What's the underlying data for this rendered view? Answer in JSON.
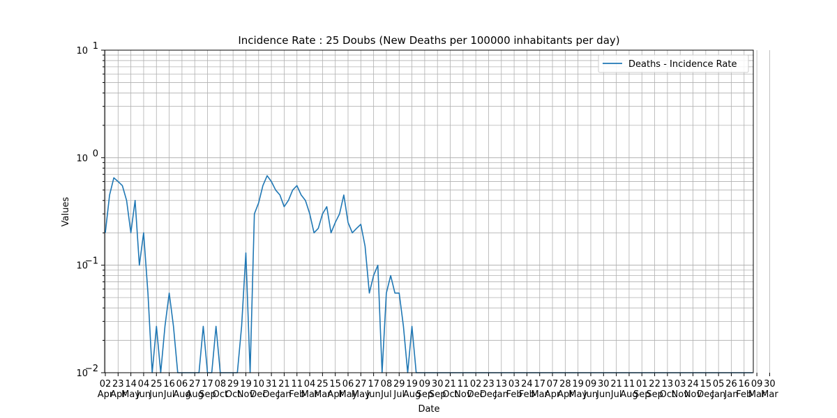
{
  "chart_data": {
    "type": "line",
    "title": "Incidence Rate : 25 Doubs (New Deaths per 100000 inhabitants per day)",
    "xlabel": "Date",
    "ylabel": "Values",
    "yscale": "log",
    "ylim": [
      0.01,
      10
    ],
    "y_ticks": [
      {
        "value": 0.01,
        "base": "10",
        "exp": "−2"
      },
      {
        "value": 0.1,
        "base": "10",
        "exp": "−1"
      },
      {
        "value": 1,
        "base": "10",
        "exp": "0"
      },
      {
        "value": 10,
        "base": "10",
        "exp": "1"
      }
    ],
    "grid": true,
    "legend_position": "top-right",
    "color": "#1f77b4",
    "x_ticks": [
      {
        "day": "02",
        "month": "Apr"
      },
      {
        "day": "23",
        "month": "Apr"
      },
      {
        "day": "14",
        "month": "May"
      },
      {
        "day": "04",
        "month": "Jun"
      },
      {
        "day": "25",
        "month": "Jun"
      },
      {
        "day": "16",
        "month": "Jul"
      },
      {
        "day": "06",
        "month": "Aug"
      },
      {
        "day": "27",
        "month": "Aug"
      },
      {
        "day": "17",
        "month": "Sep"
      },
      {
        "day": "08",
        "month": "Oct"
      },
      {
        "day": "29",
        "month": "Oct"
      },
      {
        "day": "19",
        "month": "Nov"
      },
      {
        "day": "10",
        "month": "Dec"
      },
      {
        "day": "31",
        "month": "Dec"
      },
      {
        "day": "21",
        "month": "Jan"
      },
      {
        "day": "11",
        "month": "Feb"
      },
      {
        "day": "04",
        "month": "Mar"
      },
      {
        "day": "25",
        "month": "Mar"
      },
      {
        "day": "15",
        "month": "Apr"
      },
      {
        "day": "06",
        "month": "May"
      },
      {
        "day": "27",
        "month": "May"
      },
      {
        "day": "17",
        "month": "Jun"
      },
      {
        "day": "08",
        "month": "Jul"
      },
      {
        "day": "29",
        "month": "Jul"
      },
      {
        "day": "19",
        "month": "Aug"
      },
      {
        "day": "09",
        "month": "Sep"
      },
      {
        "day": "30",
        "month": "Sep"
      },
      {
        "day": "21",
        "month": "Oct"
      },
      {
        "day": "11",
        "month": "Nov"
      },
      {
        "day": "02",
        "month": "Dec"
      },
      {
        "day": "23",
        "month": "Dec"
      },
      {
        "day": "13",
        "month": "Jan"
      },
      {
        "day": "03",
        "month": "Feb"
      },
      {
        "day": "24",
        "month": "Feb"
      },
      {
        "day": "17",
        "month": "Mar"
      },
      {
        "day": "07",
        "month": "Apr"
      },
      {
        "day": "28",
        "month": "Apr"
      },
      {
        "day": "19",
        "month": "May"
      },
      {
        "day": "09",
        "month": "Jun"
      },
      {
        "day": "30",
        "month": "Jun"
      },
      {
        "day": "21",
        "month": "Jul"
      },
      {
        "day": "11",
        "month": "Aug"
      },
      {
        "day": "01",
        "month": "Sep"
      },
      {
        "day": "22",
        "month": "Sep"
      },
      {
        "day": "13",
        "month": "Oct"
      },
      {
        "day": "03",
        "month": "Nov"
      },
      {
        "day": "24",
        "month": "Nov"
      },
      {
        "day": "15",
        "month": "Dec"
      },
      {
        "day": "05",
        "month": "Jan"
      },
      {
        "day": "26",
        "month": "Jan"
      },
      {
        "day": "16",
        "month": "Feb"
      },
      {
        "day": "09",
        "month": "Mar"
      },
      {
        "day": "30",
        "month": "Mar"
      }
    ],
    "x_tick_index": [
      0,
      3,
      6,
      9,
      12,
      15,
      18,
      21,
      24,
      27,
      30,
      33,
      36,
      39,
      42,
      45,
      48,
      51,
      54,
      57,
      60,
      63,
      66,
      69,
      72,
      75,
      78,
      81,
      84,
      87,
      90,
      93,
      96,
      99,
      102,
      105,
      108,
      111,
      114,
      117,
      120,
      123,
      126,
      129,
      132,
      135,
      138,
      141,
      144,
      147,
      150,
      153,
      156
    ],
    "series": [
      {
        "name": "Deaths - Incidence Rate",
        "sampling": "weekly",
        "values": [
          0.2,
          0.45,
          0.65,
          0.6,
          0.55,
          0.4,
          0.2,
          0.4,
          0.1,
          0.2,
          0.055,
          0.01,
          0.027,
          0.01,
          0.027,
          0.055,
          0.027,
          0.01,
          0.01,
          0.01,
          0.01,
          0.01,
          0.01,
          0.027,
          0.01,
          0.01,
          0.027,
          0.01,
          0.01,
          0.01,
          0.01,
          0.01,
          0.027,
          0.13,
          0.01,
          0.3,
          0.38,
          0.55,
          0.68,
          0.6,
          0.5,
          0.45,
          0.35,
          0.4,
          0.5,
          0.55,
          0.45,
          0.4,
          0.3,
          0.2,
          0.22,
          0.3,
          0.35,
          0.2,
          0.25,
          0.3,
          0.45,
          0.25,
          0.2,
          0.22,
          0.24,
          0.15,
          0.055,
          0.08,
          0.1,
          0.01,
          0.055,
          0.08,
          0.055,
          0.055,
          0.027,
          0.01,
          0.027,
          0.01,
          0.01,
          0.01,
          0.01,
          0.01,
          0.01,
          0.01,
          0.01,
          0.01,
          0.01,
          0.01,
          0.01,
          0.01,
          0.01,
          0.01,
          0.01,
          0.01,
          0.01,
          0.01,
          0.01,
          0.01,
          0.01,
          0.01,
          0.01,
          0.01,
          0.01,
          0.01,
          0.01,
          0.01,
          0.01,
          0.01,
          0.01,
          0.01,
          0.01,
          0.01,
          0.01,
          0.01,
          0.01,
          0.01,
          0.01,
          0.01,
          0.01,
          0.01,
          0.01,
          0.01,
          0.01,
          0.01,
          0.01,
          0.01,
          0.01,
          0.01,
          0.01,
          0.01,
          0.01,
          0.01,
          0.01,
          0.01,
          0.01,
          0.01,
          0.01,
          0.01,
          0.01,
          0.01,
          0.01,
          0.01,
          0.01,
          0.01,
          0.01,
          0.01,
          0.01,
          0.01,
          0.01,
          0.01,
          0.01,
          0.01,
          0.01,
          0.01,
          0.01,
          0.01,
          0.01
        ]
      }
    ]
  }
}
